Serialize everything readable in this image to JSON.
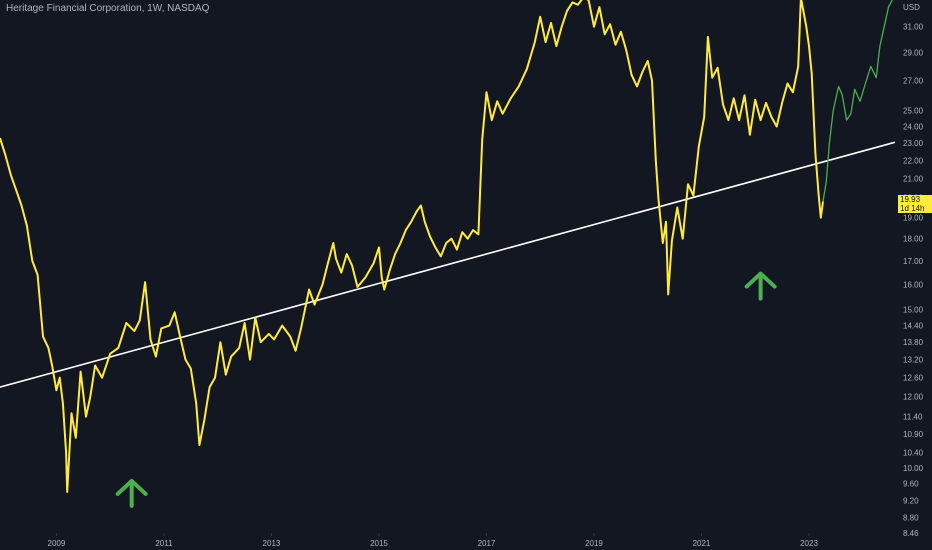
{
  "header": {
    "title": "Heritage Financial Corporation, 1W, NASDAQ"
  },
  "price_tag": {
    "value": "19.93",
    "countdown": "1d 14h",
    "color": "#ffeb3b"
  },
  "chart_data": {
    "type": "line",
    "currency": "USD",
    "y_scale": "log",
    "ylim": [
      8.46,
      33.2
    ],
    "xlim": [
      2007.95,
      2024.6
    ],
    "y_ticks": [
      "31.00",
      "29.00",
      "27.00",
      "25.00",
      "24.00",
      "23.00",
      "22.00",
      "21.00",
      "20.00",
      "19.00",
      "18.00",
      "17.00",
      "16.00",
      "15.00",
      "14.40",
      "13.80",
      "13.20",
      "12.60",
      "12.00",
      "11.40",
      "10.90",
      "10.40",
      "10.00",
      "9.60",
      "9.20",
      "8.80",
      "8.46"
    ],
    "x_ticks": [
      "2009",
      "2011",
      "2013",
      "2015",
      "2017",
      "2019",
      "2021",
      "2023"
    ],
    "x_tick_years": [
      2009,
      2011,
      2013,
      2015,
      2017,
      2019,
      2021,
      2023
    ],
    "colors": {
      "background": "#131722",
      "price": "#ffeb3b",
      "price_recent": "#4caf50",
      "trendline": "#ffffff",
      "arrow": "#4caf50"
    },
    "series": [
      {
        "color": "#ffeb3b",
        "points": [
          [
            2007.95,
            23.3
          ],
          [
            2008.05,
            22.3
          ],
          [
            2008.15,
            21.2
          ],
          [
            2008.25,
            20.4
          ],
          [
            2008.35,
            19.6
          ],
          [
            2008.45,
            18.6
          ],
          [
            2008.55,
            17.0
          ],
          [
            2008.65,
            16.4
          ],
          [
            2008.75,
            14.0
          ],
          [
            2008.85,
            13.6
          ],
          [
            2008.92,
            13.0
          ],
          [
            2009.0,
            12.2
          ],
          [
            2009.06,
            12.6
          ],
          [
            2009.12,
            11.8
          ],
          [
            2009.18,
            10.4
          ],
          [
            2009.2,
            9.4
          ],
          [
            2009.28,
            11.5
          ],
          [
            2009.36,
            10.8
          ],
          [
            2009.45,
            12.8
          ],
          [
            2009.55,
            11.4
          ],
          [
            2009.63,
            12.0
          ],
          [
            2009.72,
            13.0
          ],
          [
            2009.85,
            12.6
          ],
          [
            2010.0,
            13.4
          ],
          [
            2010.15,
            13.6
          ],
          [
            2010.3,
            14.5
          ],
          [
            2010.45,
            14.2
          ],
          [
            2010.55,
            14.6
          ],
          [
            2010.65,
            16.1
          ],
          [
            2010.75,
            13.9
          ],
          [
            2010.85,
            13.3
          ],
          [
            2010.95,
            14.3
          ],
          [
            2011.1,
            14.4
          ],
          [
            2011.2,
            14.9
          ],
          [
            2011.3,
            14.0
          ],
          [
            2011.4,
            13.2
          ],
          [
            2011.5,
            12.9
          ],
          [
            2011.6,
            11.8
          ],
          [
            2011.66,
            10.6
          ],
          [
            2011.75,
            11.3
          ],
          [
            2011.85,
            12.3
          ],
          [
            2011.95,
            12.6
          ],
          [
            2012.05,
            13.8
          ],
          [
            2012.15,
            12.7
          ],
          [
            2012.25,
            13.3
          ],
          [
            2012.4,
            13.6
          ],
          [
            2012.5,
            14.5
          ],
          [
            2012.6,
            13.2
          ],
          [
            2012.7,
            14.7
          ],
          [
            2012.8,
            13.8
          ],
          [
            2012.95,
            14.1
          ],
          [
            2013.05,
            13.9
          ],
          [
            2013.2,
            14.4
          ],
          [
            2013.35,
            14.0
          ],
          [
            2013.45,
            13.5
          ],
          [
            2013.55,
            14.3
          ],
          [
            2013.7,
            15.8
          ],
          [
            2013.8,
            15.2
          ],
          [
            2013.95,
            16.0
          ],
          [
            2014.05,
            16.9
          ],
          [
            2014.15,
            17.8
          ],
          [
            2014.2,
            17.1
          ],
          [
            2014.3,
            16.5
          ],
          [
            2014.4,
            17.3
          ],
          [
            2014.5,
            16.8
          ],
          [
            2014.6,
            15.9
          ],
          [
            2014.75,
            16.3
          ],
          [
            2014.9,
            16.9
          ],
          [
            2015.0,
            17.6
          ],
          [
            2015.05,
            16.3
          ],
          [
            2015.1,
            15.8
          ],
          [
            2015.2,
            16.6
          ],
          [
            2015.3,
            17.3
          ],
          [
            2015.4,
            17.8
          ],
          [
            2015.5,
            18.4
          ],
          [
            2015.6,
            18.8
          ],
          [
            2015.7,
            19.3
          ],
          [
            2015.78,
            19.6
          ],
          [
            2015.85,
            18.8
          ],
          [
            2015.95,
            18.1
          ],
          [
            2016.05,
            17.6
          ],
          [
            2016.15,
            17.2
          ],
          [
            2016.25,
            17.8
          ],
          [
            2016.35,
            18.0
          ],
          [
            2016.45,
            17.5
          ],
          [
            2016.55,
            18.3
          ],
          [
            2016.65,
            18.0
          ],
          [
            2016.75,
            18.4
          ],
          [
            2016.85,
            18.2
          ],
          [
            2016.92,
            23.2
          ],
          [
            2017.0,
            26.2
          ],
          [
            2017.1,
            24.4
          ],
          [
            2017.2,
            25.6
          ],
          [
            2017.3,
            24.8
          ],
          [
            2017.45,
            25.8
          ],
          [
            2017.6,
            26.6
          ],
          [
            2017.75,
            27.8
          ],
          [
            2017.9,
            29.8
          ],
          [
            2018.0,
            31.8
          ],
          [
            2018.1,
            29.8
          ],
          [
            2018.2,
            31.3
          ],
          [
            2018.3,
            29.5
          ],
          [
            2018.4,
            31.0
          ],
          [
            2018.5,
            32.3
          ],
          [
            2018.6,
            33.0
          ],
          [
            2018.7,
            32.8
          ],
          [
            2018.8,
            33.4
          ],
          [
            2018.9,
            33.2
          ],
          [
            2019.0,
            31.0
          ],
          [
            2019.1,
            32.6
          ],
          [
            2019.2,
            30.4
          ],
          [
            2019.3,
            31.2
          ],
          [
            2019.4,
            29.6
          ],
          [
            2019.5,
            30.6
          ],
          [
            2019.6,
            29.2
          ],
          [
            2019.7,
            27.4
          ],
          [
            2019.8,
            26.6
          ],
          [
            2019.9,
            27.6
          ],
          [
            2020.0,
            28.4
          ],
          [
            2020.08,
            27.0
          ],
          [
            2020.15,
            22.0
          ],
          [
            2020.2,
            19.9
          ],
          [
            2020.28,
            17.8
          ],
          [
            2020.34,
            18.8
          ],
          [
            2020.38,
            15.6
          ],
          [
            2020.45,
            17.9
          ],
          [
            2020.55,
            19.5
          ],
          [
            2020.65,
            18.0
          ],
          [
            2020.75,
            20.7
          ],
          [
            2020.85,
            20.1
          ],
          [
            2020.95,
            22.8
          ],
          [
            2021.05,
            24.6
          ],
          [
            2021.12,
            30.2
          ],
          [
            2021.2,
            27.2
          ],
          [
            2021.3,
            27.9
          ],
          [
            2021.4,
            25.4
          ],
          [
            2021.5,
            24.4
          ],
          [
            2021.6,
            25.8
          ],
          [
            2021.7,
            24.4
          ],
          [
            2021.8,
            26.0
          ],
          [
            2021.9,
            23.5
          ],
          [
            2022.0,
            25.7
          ],
          [
            2022.1,
            24.4
          ],
          [
            2022.2,
            25.5
          ],
          [
            2022.3,
            24.6
          ],
          [
            2022.4,
            24.0
          ],
          [
            2022.5,
            25.5
          ],
          [
            2022.6,
            26.8
          ],
          [
            2022.7,
            26.2
          ],
          [
            2022.8,
            28.0
          ],
          [
            2022.85,
            33.4
          ],
          [
            2022.95,
            31.0
          ],
          [
            2023.0,
            29.5
          ],
          [
            2023.05,
            27.5
          ],
          [
            2023.12,
            22.4
          ],
          [
            2023.18,
            20.1
          ],
          [
            2023.22,
            19.0
          ],
          [
            2023.26,
            19.8
          ]
        ]
      },
      {
        "color": "#4caf50",
        "points": [
          [
            2023.26,
            19.8
          ],
          [
            2023.32,
            20.8
          ],
          [
            2023.38,
            23.0
          ],
          [
            2023.45,
            25.0
          ],
          [
            2023.55,
            26.6
          ],
          [
            2023.62,
            26.0
          ],
          [
            2023.7,
            24.4
          ],
          [
            2023.78,
            24.8
          ],
          [
            2023.85,
            26.4
          ],
          [
            2023.95,
            25.6
          ],
          [
            2024.05,
            26.8
          ],
          [
            2024.15,
            28.0
          ],
          [
            2024.25,
            27.2
          ],
          [
            2024.32,
            29.5
          ],
          [
            2024.4,
            31.0
          ],
          [
            2024.48,
            32.6
          ],
          [
            2024.55,
            33.2
          ]
        ]
      }
    ],
    "trendline": {
      "from": [
        2007.95,
        12.3
      ],
      "to": [
        2024.6,
        23.05
      ]
    },
    "annotations": [
      {
        "type": "arrow-up",
        "x": 2010.4,
        "y": 9.4
      },
      {
        "type": "arrow-up",
        "x": 2022.1,
        "y": 16.0
      }
    ]
  }
}
